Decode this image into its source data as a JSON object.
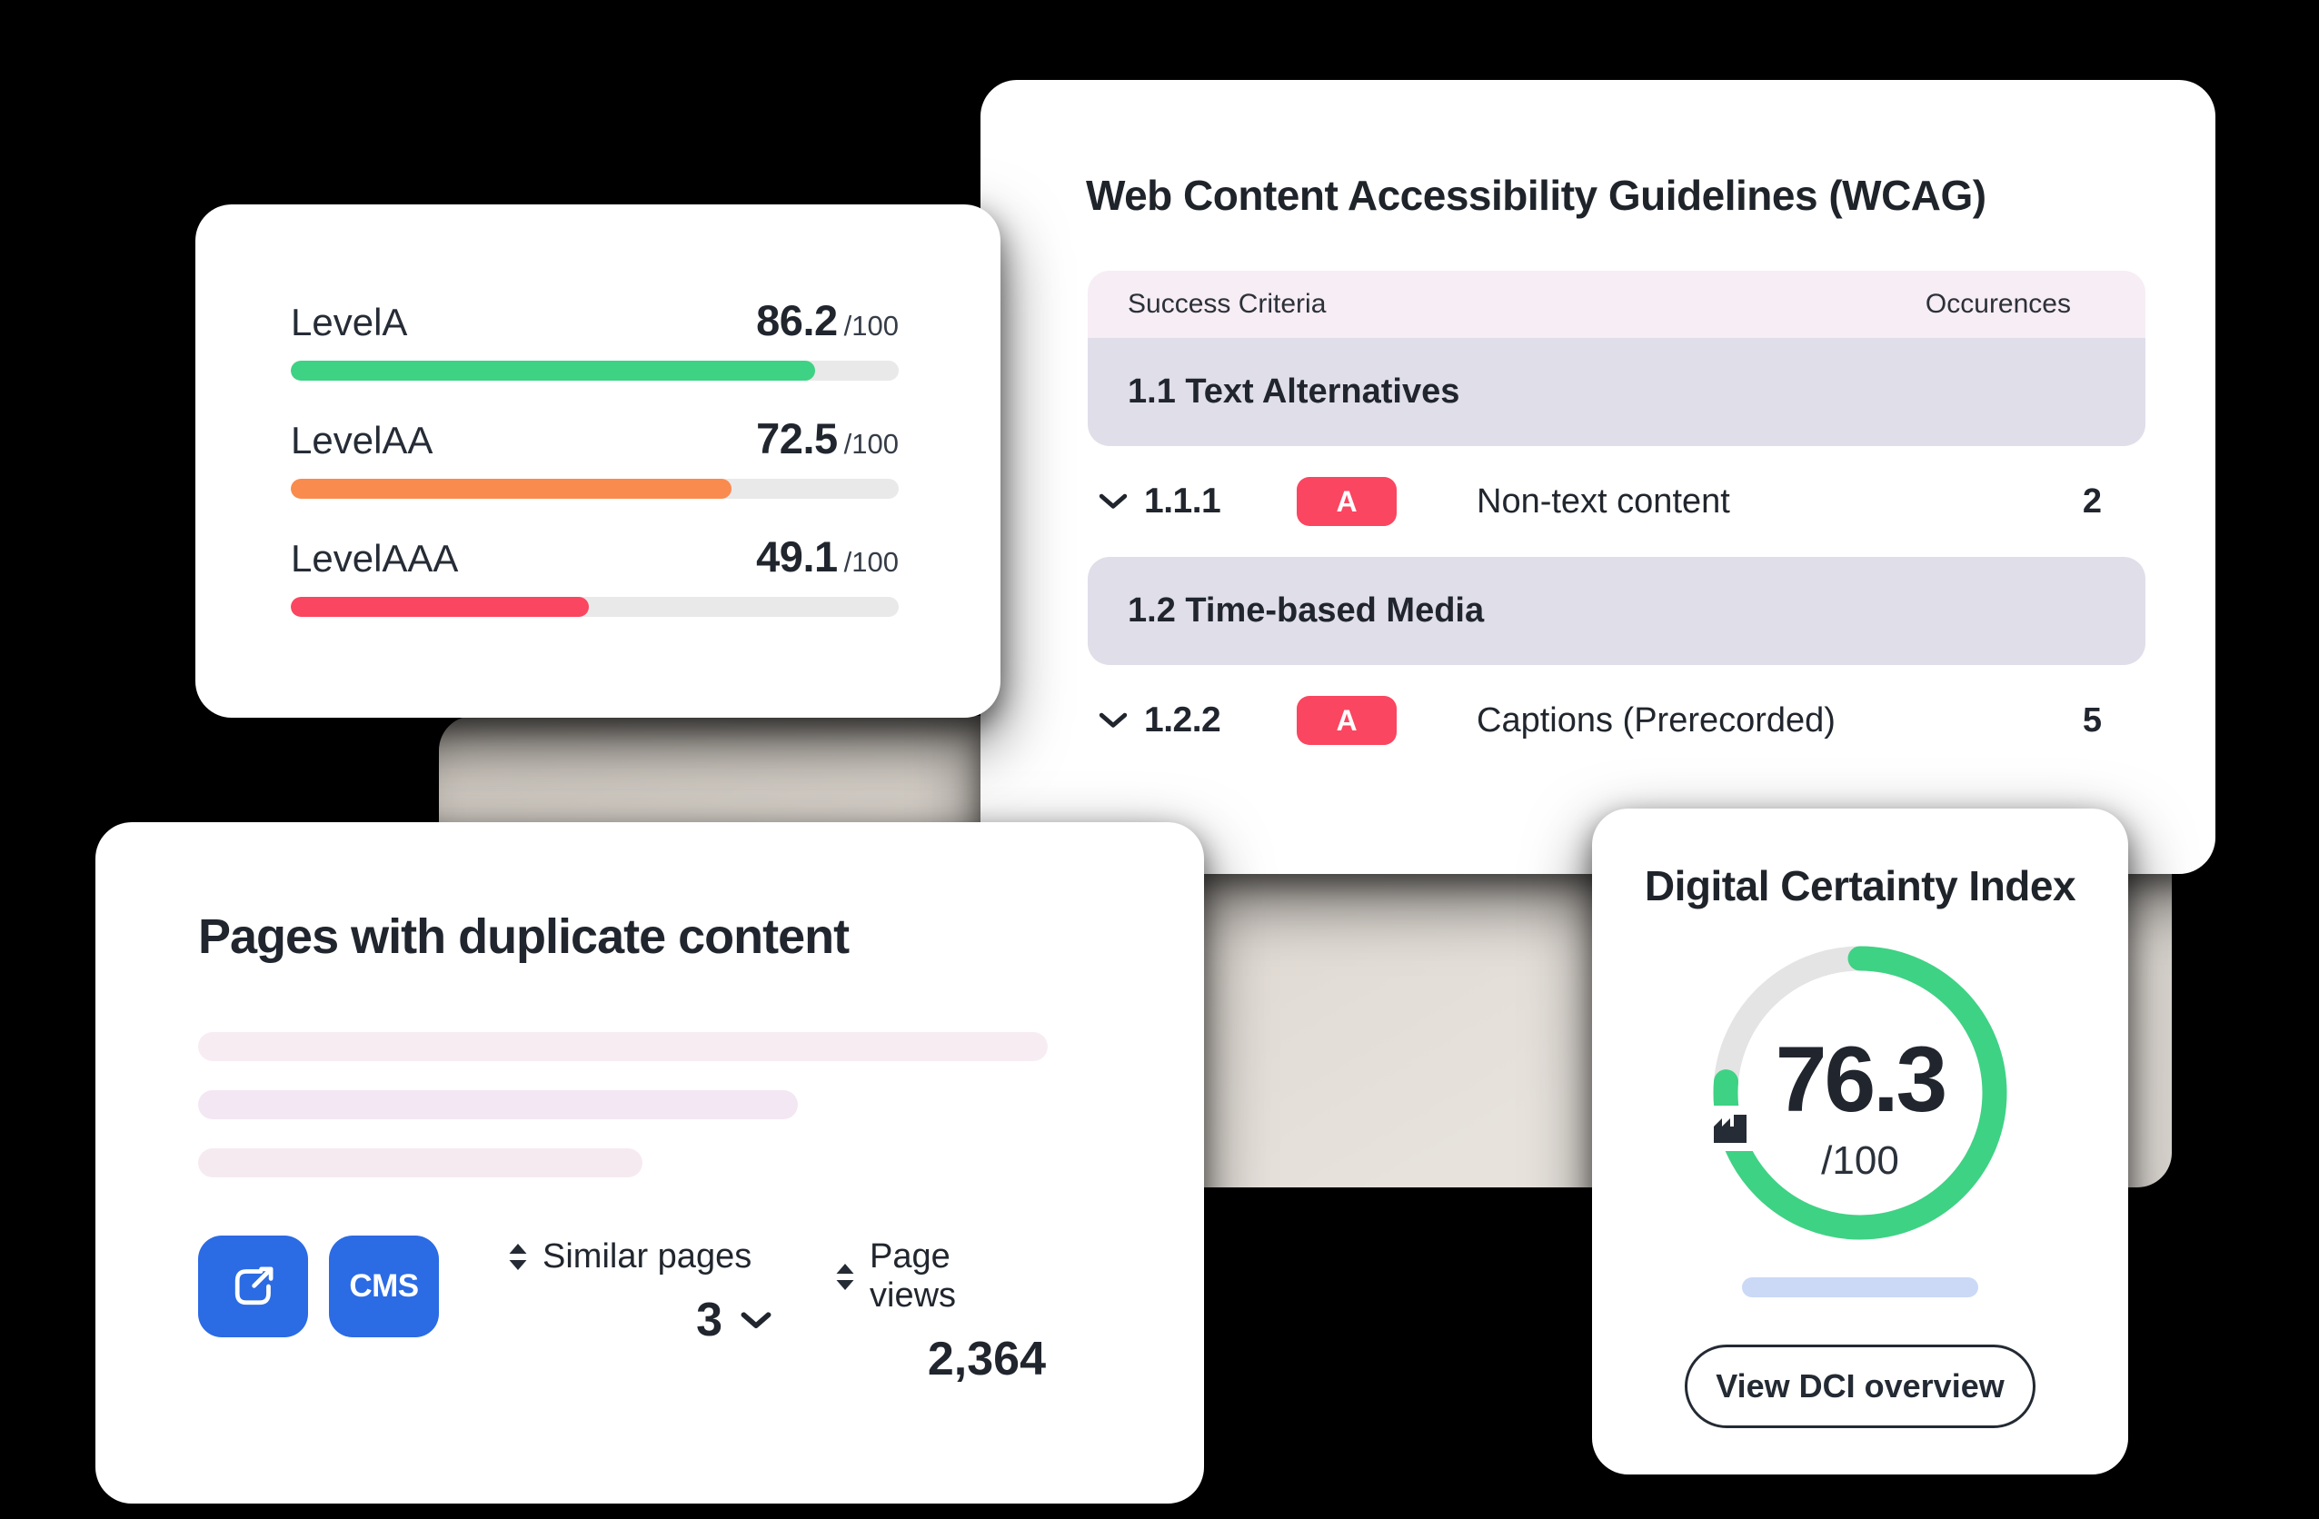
{
  "colors": {
    "green": "#3ed284",
    "orange": "#f98b4f",
    "red": "#fa4660",
    "badge_red": "#fa4660",
    "blue": "#2b6be4",
    "light_blue": "#cbd9f6",
    "beige": "#e7e2dc",
    "pink_header": "#f7edf4",
    "lavender_band": "#e0dee9",
    "gauge_green": "#3ed284",
    "gauge_track": "#e4e4e4",
    "ink": "#20252e"
  },
  "scores_card": {
    "rows": [
      {
        "label": "LevelA",
        "value": "86.2",
        "suffix": "/100",
        "percent": 86.2,
        "color": "#3ed284"
      },
      {
        "label": "LevelAA",
        "value": "72.5",
        "suffix": "/100",
        "percent": 72.5,
        "color": "#f98b4f"
      },
      {
        "label": "LevelAAA",
        "value": "49.1",
        "suffix": "/100",
        "percent": 49.1,
        "color": "#fa4660"
      }
    ]
  },
  "wcag_card": {
    "title": "Web Content Accessibility Guidelines (WCAG)",
    "header": {
      "left": "Success Criteria",
      "right": "Occurences"
    },
    "sections": [
      {
        "heading": "1.1 Text Alternatives",
        "rows": [
          {
            "id": "1.1.1",
            "badge": "A",
            "name": "Non-text content",
            "occurrences": "2"
          }
        ]
      },
      {
        "heading": "1.2 Time-based Media",
        "rows": [
          {
            "id": "1.2.2",
            "badge": "A",
            "name": "Captions (Prerecorded)",
            "occurrences": "5"
          }
        ]
      }
    ]
  },
  "duplicate_card": {
    "title": "Pages with duplicate content",
    "cms_button_label": "CMS",
    "stats": [
      {
        "label": "Similar pages",
        "value": "3"
      },
      {
        "label": "Page views",
        "value": "2,364"
      }
    ]
  },
  "dci_card": {
    "title": "Digital Certainty Index",
    "score": "76.3",
    "suffix": "/100",
    "percent": 76.3,
    "button_label": "View DCI overview"
  }
}
